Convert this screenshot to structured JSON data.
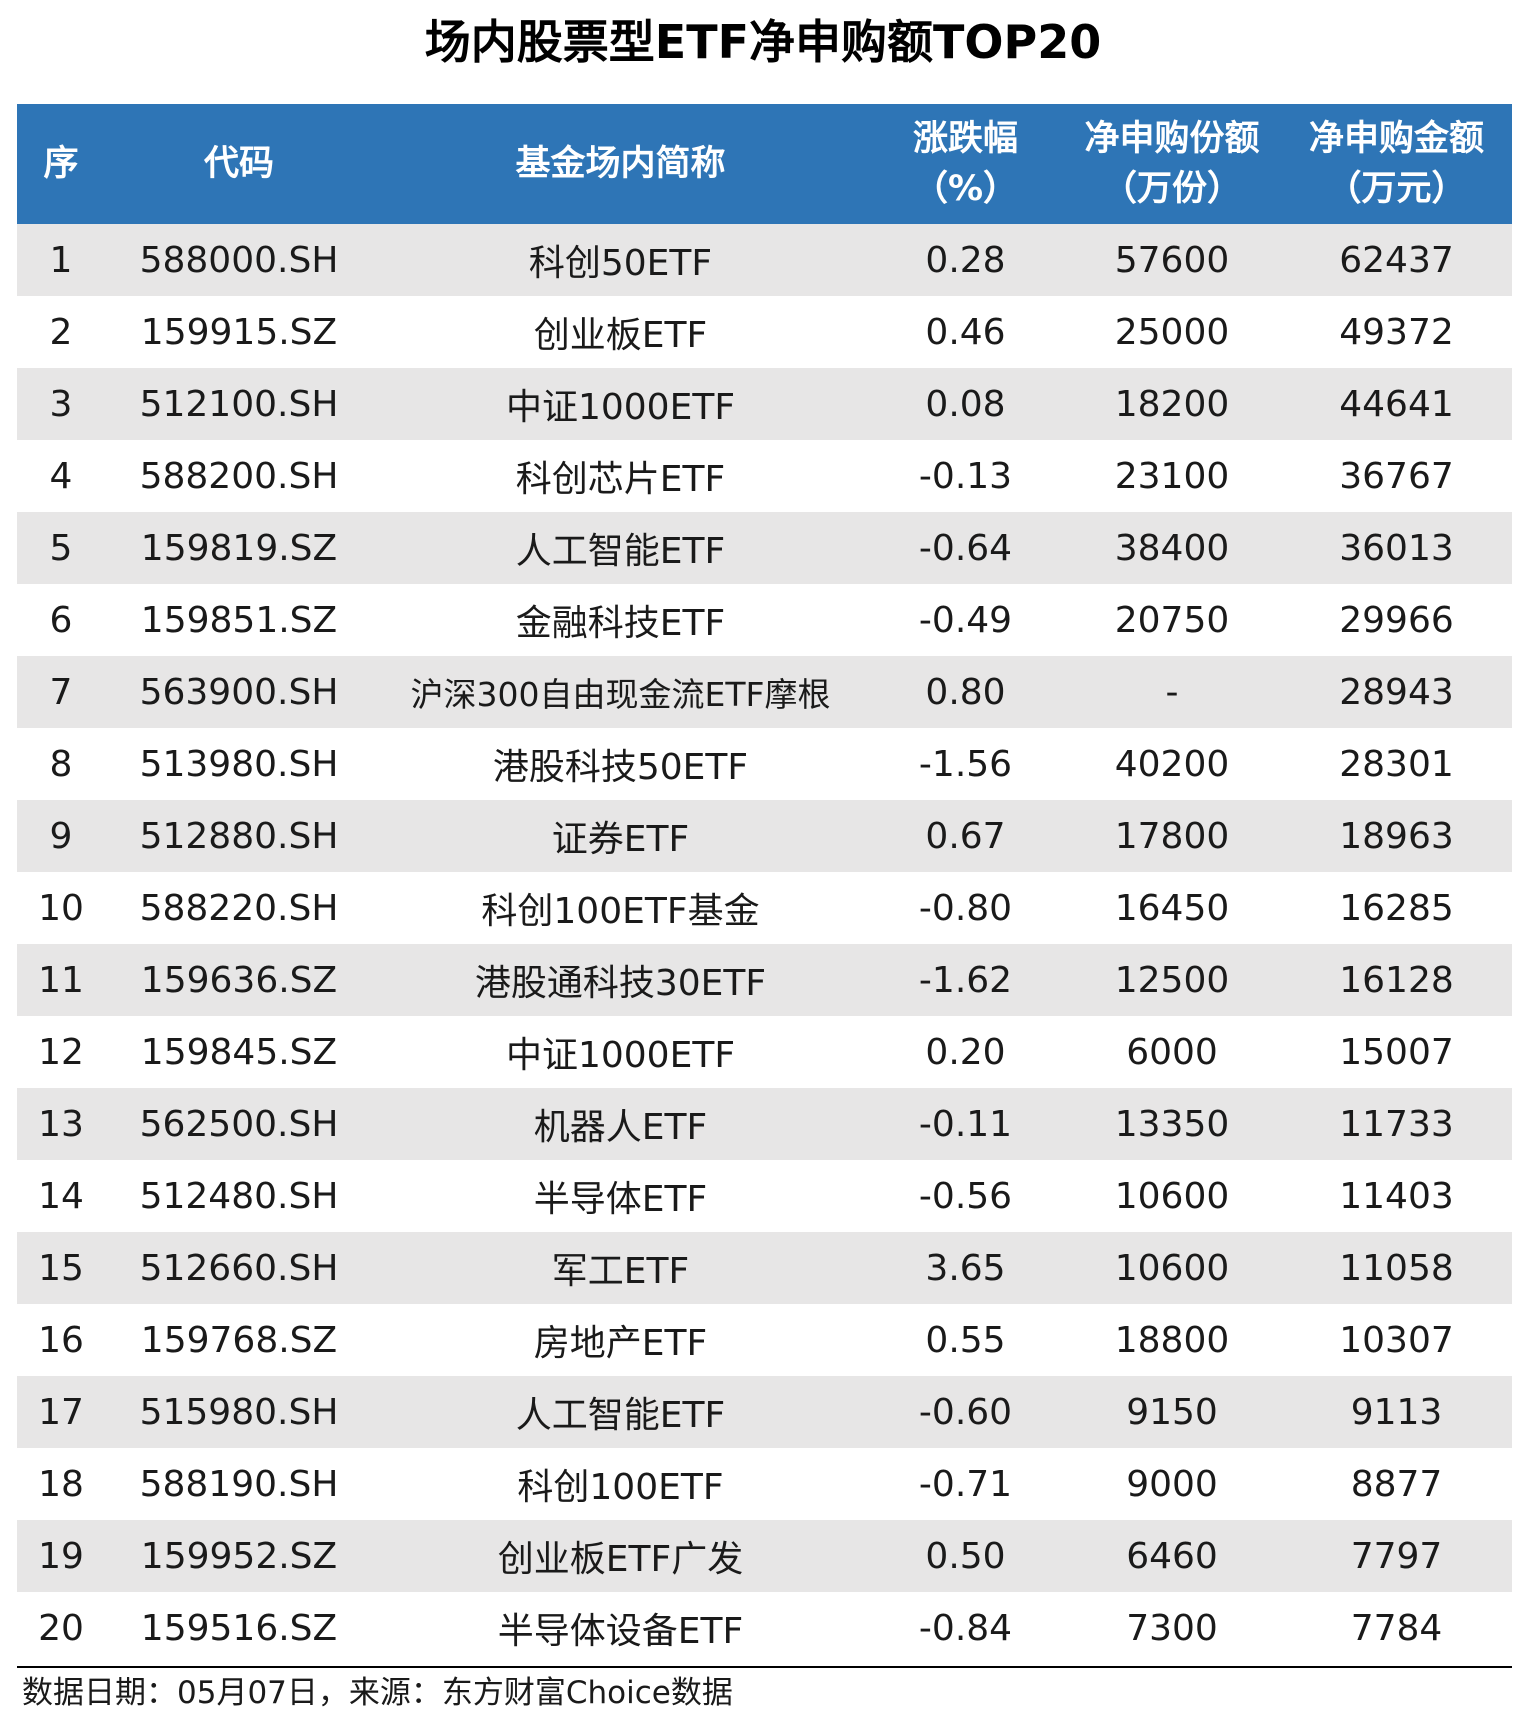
{
  "title": "场内股票型ETF净申购额TOP20",
  "table": {
    "headers": {
      "rank": "序",
      "code": "代码",
      "name": "基金场内简称",
      "change_line1": "涨跌幅",
      "change_line2": "（%）",
      "shares_line1": "净申购份额",
      "shares_line2": "（万份）",
      "amount_line1": "净申购金额",
      "amount_line2": "（万元）"
    },
    "rows": [
      {
        "rank": "1",
        "code": "588000.SH",
        "name": "科创50ETF",
        "change": "0.28",
        "shares": "57600",
        "amount": "62437"
      },
      {
        "rank": "2",
        "code": "159915.SZ",
        "name": "创业板ETF",
        "change": "0.46",
        "shares": "25000",
        "amount": "49372"
      },
      {
        "rank": "3",
        "code": "512100.SH",
        "name": "中证1000ETF",
        "change": "0.08",
        "shares": "18200",
        "amount": "44641"
      },
      {
        "rank": "4",
        "code": "588200.SH",
        "name": "科创芯片ETF",
        "change": "-0.13",
        "shares": "23100",
        "amount": "36767"
      },
      {
        "rank": "5",
        "code": "159819.SZ",
        "name": "人工智能ETF",
        "change": "-0.64",
        "shares": "38400",
        "amount": "36013"
      },
      {
        "rank": "6",
        "code": "159851.SZ",
        "name": "金融科技ETF",
        "change": "-0.49",
        "shares": "20750",
        "amount": "29966"
      },
      {
        "rank": "7",
        "code": "563900.SH",
        "name": "沪深300自由现金流ETF摩根",
        "change": "0.80",
        "shares": "-",
        "amount": "28943"
      },
      {
        "rank": "8",
        "code": "513980.SH",
        "name": "港股科技50ETF",
        "change": "-1.56",
        "shares": "40200",
        "amount": "28301"
      },
      {
        "rank": "9",
        "code": "512880.SH",
        "name": "证券ETF",
        "change": "0.67",
        "shares": "17800",
        "amount": "18963"
      },
      {
        "rank": "10",
        "code": "588220.SH",
        "name": "科创100ETF基金",
        "change": "-0.80",
        "shares": "16450",
        "amount": "16285"
      },
      {
        "rank": "11",
        "code": "159636.SZ",
        "name": "港股通科技30ETF",
        "change": "-1.62",
        "shares": "12500",
        "amount": "16128"
      },
      {
        "rank": "12",
        "code": "159845.SZ",
        "name": "中证1000ETF",
        "change": "0.20",
        "shares": "6000",
        "amount": "15007"
      },
      {
        "rank": "13",
        "code": "562500.SH",
        "name": "机器人ETF",
        "change": "-0.11",
        "shares": "13350",
        "amount": "11733"
      },
      {
        "rank": "14",
        "code": "512480.SH",
        "name": "半导体ETF",
        "change": "-0.56",
        "shares": "10600",
        "amount": "11403"
      },
      {
        "rank": "15",
        "code": "512660.SH",
        "name": "军工ETF",
        "change": "3.65",
        "shares": "10600",
        "amount": "11058"
      },
      {
        "rank": "16",
        "code": "159768.SZ",
        "name": "房地产ETF",
        "change": "0.55",
        "shares": "18800",
        "amount": "10307"
      },
      {
        "rank": "17",
        "code": "515980.SH",
        "name": "人工智能ETF",
        "change": "-0.60",
        "shares": "9150",
        "amount": "9113"
      },
      {
        "rank": "18",
        "code": "588190.SH",
        "name": "科创100ETF",
        "change": "-0.71",
        "shares": "9000",
        "amount": "8877"
      },
      {
        "rank": "19",
        "code": "159952.SZ",
        "name": "创业板ETF广发",
        "change": "0.50",
        "shares": "6460",
        "amount": "7797"
      },
      {
        "rank": "20",
        "code": "159516.SZ",
        "name": "半导体设备ETF",
        "change": "-0.84",
        "shares": "7300",
        "amount": "7784"
      }
    ]
  },
  "source": "数据日期：05月07日，来源：东方财富Choice数据",
  "colors": {
    "header_bg": "#2e75b6",
    "header_text": "#ffffff",
    "row_shade": "#e7e6e6"
  }
}
